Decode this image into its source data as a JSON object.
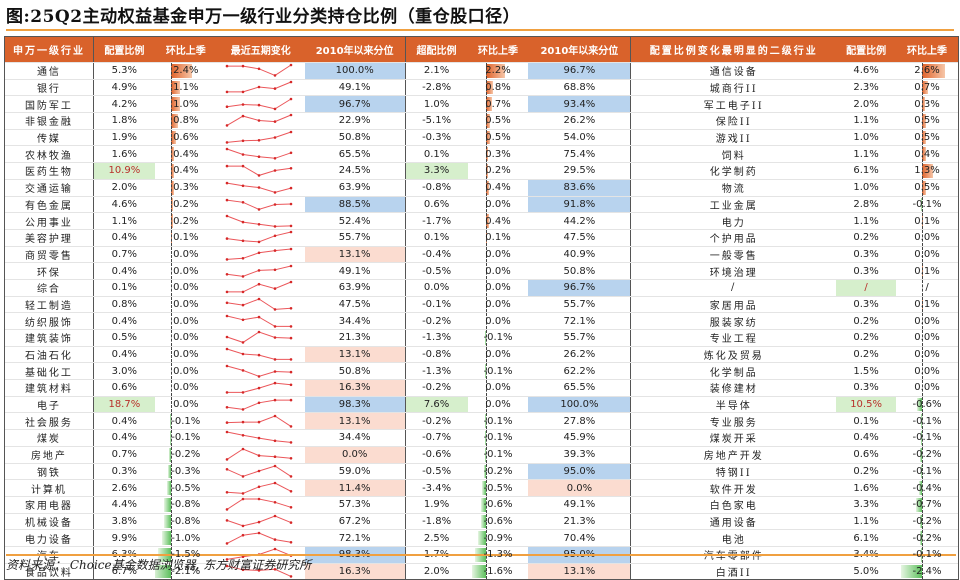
{
  "title": "图:25Q2主动权益基金申万一级行业分类持仓比例（重仓股口径）",
  "source": "资料来源： Choice基金数据浏览器, 东方财富证券研究所",
  "colors": {
    "header_bg": "#d9622b",
    "blue_highlight": "#b8d3ee",
    "pink_highlight": "#fbdcd0",
    "green_highlight": "#d6efcc",
    "bar_positive": "#e0622a",
    "bar_negative": "#5cbf5c",
    "sparkline": "#e8383d",
    "rule": "#f0a040"
  },
  "headers": [
    "申万一级行业",
    "配置比例",
    "环比上季",
    "最近五期变化",
    "2010年以来分位",
    "超配比例",
    "环比上季",
    "2010年以来分位",
    "配置比例变化最明显的二级行业",
    "配置比例",
    "环比上季"
  ],
  "rows": [
    {
      "industry": "通信",
      "weight": "5.3%",
      "qoq": "2.4%",
      "qoq_v": 2.4,
      "spark": [
        0.1,
        0.1,
        0.35,
        0.95,
        0.0
      ],
      "pct": "100.0%",
      "pct_hl": "blue",
      "over": "2.1%",
      "over_qoq": "2.2%",
      "over_qoq_v": 2.2,
      "over_pct": "96.7%",
      "over_pct_hl": "blue",
      "sub": "通信设备",
      "sub_w": "4.6%",
      "sub_qoq": "2.6%",
      "sub_qoq_v": 2.6
    },
    {
      "industry": "银行",
      "weight": "4.9%",
      "qoq": "1.1%",
      "qoq_v": 1.1,
      "spark": [
        0.9,
        0.9,
        0.45,
        0.6,
        0.0
      ],
      "pct": "49.1%",
      "over": "-2.8%",
      "over_qoq": "0.8%",
      "over_qoq_v": 0.8,
      "over_pct": "68.8%",
      "sub": "城商行II",
      "sub_w": "2.3%",
      "sub_qoq": "0.7%",
      "sub_qoq_v": 0.7
    },
    {
      "industry": "国防军工",
      "weight": "4.2%",
      "qoq": "1.0%",
      "qoq_v": 1.0,
      "spark": [
        0.7,
        0.5,
        0.55,
        0.9,
        0.0
      ],
      "pct": "96.7%",
      "pct_hl": "blue",
      "over": "1.0%",
      "over_qoq": "0.7%",
      "over_qoq_v": 0.7,
      "over_pct": "93.4%",
      "over_pct_hl": "blue",
      "sub": "军工电子II",
      "sub_w": "2.0%",
      "sub_qoq": "0.3%",
      "sub_qoq_v": 0.3
    },
    {
      "industry": "非银金融",
      "weight": "1.8%",
      "qoq": "0.8%",
      "qoq_v": 0.8,
      "spark": [
        0.95,
        0.1,
        0.5,
        0.6,
        0.0
      ],
      "pct": "22.9%",
      "over": "-5.1%",
      "over_qoq": "0.5%",
      "over_qoq_v": 0.5,
      "over_pct": "26.2%",
      "sub": "保险II",
      "sub_w": "1.1%",
      "sub_qoq": "0.5%",
      "sub_qoq_v": 0.5
    },
    {
      "industry": "传媒",
      "weight": "1.9%",
      "qoq": "0.6%",
      "qoq_v": 0.6,
      "spark": [
        0.95,
        0.8,
        0.75,
        0.5,
        0.0
      ],
      "pct": "50.8%",
      "over": "-0.3%",
      "over_qoq": "0.5%",
      "over_qoq_v": 0.5,
      "over_pct": "54.0%",
      "sub": "游戏II",
      "sub_w": "1.0%",
      "sub_qoq": "0.5%",
      "sub_qoq_v": 0.5
    },
    {
      "industry": "农林牧渔",
      "weight": "1.6%",
      "qoq": "0.4%",
      "qoq_v": 0.4,
      "spark": [
        0.0,
        0.5,
        0.7,
        0.85,
        0.35
      ],
      "pct": "65.5%",
      "over": "0.1%",
      "over_qoq": "0.3%",
      "over_qoq_v": 0.3,
      "over_pct": "75.4%",
      "sub": "饲料",
      "sub_w": "1.1%",
      "sub_qoq": "0.4%",
      "sub_qoq_v": 0.4
    },
    {
      "industry": "医药生物",
      "weight": "10.9%",
      "weight_hl": "green",
      "qoq": "0.4%",
      "qoq_v": 0.4,
      "spark": [
        0.1,
        0.1,
        0.95,
        0.5,
        0.3
      ],
      "pct": "24.5%",
      "over": "3.3%",
      "over_hl": "green",
      "over_qoq": "0.2%",
      "over_qoq_v": 0.2,
      "over_pct": "29.5%",
      "sub": "化学制药",
      "sub_w": "6.1%",
      "sub_qoq": "1.3%",
      "sub_qoq_v": 1.3
    },
    {
      "industry": "交通运输",
      "weight": "2.0%",
      "qoq": "0.3%",
      "qoq_v": 0.3,
      "spark": [
        0.1,
        0.35,
        0.5,
        0.95,
        0.55
      ],
      "pct": "63.9%",
      "over": "-0.8%",
      "over_qoq": "0.4%",
      "over_qoq_v": 0.4,
      "over_pct": "83.6%",
      "over_pct_hl": "blue",
      "sub": "物流",
      "sub_w": "1.0%",
      "sub_qoq": "0.5%",
      "sub_qoq_v": 0.5
    },
    {
      "industry": "有色金属",
      "weight": "4.6%",
      "qoq": "0.2%",
      "qoq_v": 0.2,
      "spark": [
        0.1,
        0.3,
        0.95,
        0.5,
        0.45
      ],
      "pct": "88.5%",
      "pct_hl": "blue",
      "over": "0.6%",
      "over_qoq": "0.0%",
      "over_qoq_v": 0.0,
      "over_pct": "91.8%",
      "over_pct_hl": "blue",
      "sub": "工业金属",
      "sub_w": "2.8%",
      "sub_qoq": "-0.1%",
      "sub_qoq_v": -0.1
    },
    {
      "industry": "公用事业",
      "weight": "1.1%",
      "qoq": "0.2%",
      "qoq_v": 0.2,
      "spark": [
        0.0,
        0.55,
        0.75,
        0.95,
        0.9
      ],
      "pct": "52.4%",
      "over": "-1.7%",
      "over_qoq": "0.4%",
      "over_qoq_v": 0.4,
      "over_pct": "44.2%",
      "sub": "电力",
      "sub_w": "1.1%",
      "sub_qoq": "0.1%",
      "sub_qoq_v": 0.1
    },
    {
      "industry": "美容护理",
      "weight": "0.4%",
      "qoq": "0.1%",
      "qoq_v": 0.1,
      "spark": [
        0.6,
        0.8,
        0.9,
        0.35,
        0.0
      ],
      "pct": "55.7%",
      "over": "0.1%",
      "over_qoq": "0.1%",
      "over_qoq_v": 0.1,
      "over_pct": "47.5%",
      "sub": "个护用品",
      "sub_w": "0.2%",
      "sub_qoq": "0.0%",
      "sub_qoq_v": 0.0
    },
    {
      "industry": "商贸零售",
      "weight": "0.7%",
      "qoq": "0.0%",
      "qoq_v": 0.0,
      "spark": [
        0.95,
        0.85,
        0.35,
        0.15,
        0.0
      ],
      "pct": "13.1%",
      "pct_hl": "pink",
      "over": "-0.4%",
      "over_qoq": "0.0%",
      "over_qoq_v": 0.0,
      "over_pct": "40.9%",
      "sub": "一般零售",
      "sub_w": "0.3%",
      "sub_qoq": "0.0%",
      "sub_qoq_v": 0.0
    },
    {
      "industry": "环保",
      "weight": "0.4%",
      "qoq": "0.0%",
      "qoq_v": 0.0,
      "spark": [
        0.75,
        0.95,
        0.4,
        0.35,
        0.0
      ],
      "pct": "49.1%",
      "over": "-0.5%",
      "over_qoq": "0.0%",
      "over_qoq_v": 0.0,
      "over_pct": "50.8%",
      "sub": "环境治理",
      "sub_w": "0.3%",
      "sub_qoq": "0.1%",
      "sub_qoq_v": 0.1
    },
    {
      "industry": "综合",
      "weight": "0.1%",
      "qoq": "0.0%",
      "qoq_v": 0.0,
      "spark": [
        0.9,
        0.9,
        0.2,
        0.6,
        0.0
      ],
      "pct": "63.9%",
      "over": "0.0%",
      "over_qoq": "0.0%",
      "over_qoq_v": 0.0,
      "over_pct": "96.7%",
      "over_pct_hl": "blue",
      "sub": "/",
      "sub_w": "/",
      "sub_w_hl": "green",
      "sub_qoq": "/",
      "sub_qoq_v": 0.0
    },
    {
      "industry": "轻工制造",
      "weight": "0.8%",
      "qoq": "0.0%",
      "qoq_v": 0.0,
      "spark": [
        0.35,
        0.55,
        0.0,
        0.95,
        0.85
      ],
      "pct": "47.5%",
      "over": "-0.1%",
      "over_qoq": "0.0%",
      "over_qoq_v": 0.0,
      "over_pct": "55.7%",
      "sub": "家居用品",
      "sub_w": "0.3%",
      "sub_qoq": "0.1%",
      "sub_qoq_v": 0.1
    },
    {
      "industry": "纺织服饰",
      "weight": "0.4%",
      "qoq": "0.0%",
      "qoq_v": 0.0,
      "spark": [
        0.0,
        0.35,
        0.1,
        0.95,
        0.95
      ],
      "pct": "34.4%",
      "over": "-0.2%",
      "over_qoq": "0.0%",
      "over_qoq_v": 0.0,
      "over_pct": "72.1%",
      "sub": "服装家纺",
      "sub_w": "0.2%",
      "sub_qoq": "0.0%",
      "sub_qoq_v": 0.0
    },
    {
      "industry": "建筑装饰",
      "weight": "0.5%",
      "qoq": "0.0%",
      "qoq_v": 0.0,
      "spark": [
        0.45,
        0.95,
        0.0,
        0.5,
        0.55
      ],
      "pct": "21.3%",
      "over": "-1.3%",
      "over_qoq": "-0.1%",
      "over_qoq_v": -0.1,
      "over_pct": "55.7%",
      "sub": "专业工程",
      "sub_w": "0.2%",
      "sub_qoq": "0.0%",
      "sub_qoq_v": 0.0
    },
    {
      "industry": "石油石化",
      "weight": "0.4%",
      "qoq": "0.0%",
      "qoq_v": 0.0,
      "spark": [
        0.0,
        0.45,
        0.55,
        0.95,
        0.95
      ],
      "pct": "13.1%",
      "pct_hl": "pink",
      "over": "-0.8%",
      "over_qoq": "0.0%",
      "over_qoq_v": 0.0,
      "over_pct": "26.2%",
      "sub": "炼化及贸易",
      "sub_w": "0.2%",
      "sub_qoq": "0.0%",
      "sub_qoq_v": 0.0
    },
    {
      "industry": "基础化工",
      "weight": "3.0%",
      "qoq": "0.0%",
      "qoq_v": 0.0,
      "spark": [
        0.0,
        0.4,
        0.95,
        0.5,
        0.55
      ],
      "pct": "50.8%",
      "over": "-1.3%",
      "over_qoq": "-0.1%",
      "over_qoq_v": -0.1,
      "over_pct": "62.2%",
      "sub": "化学制品",
      "sub_w": "1.5%",
      "sub_qoq": "0.0%",
      "sub_qoq_v": 0.0
    },
    {
      "industry": "建筑材料",
      "weight": "0.6%",
      "qoq": "0.0%",
      "qoq_v": 0.0,
      "spark": [
        0.95,
        0.95,
        0.55,
        0.1,
        0.25
      ],
      "pct": "16.3%",
      "pct_hl": "pink",
      "over": "-0.2%",
      "over_qoq": "0.0%",
      "over_qoq_v": 0.0,
      "over_pct": "65.5%",
      "sub": "装修建材",
      "sub_w": "0.3%",
      "sub_qoq": "0.0%",
      "sub_qoq_v": 0.0
    },
    {
      "industry": "电子",
      "weight": "18.7%",
      "weight_hl": "green",
      "qoq": "0.0%",
      "qoq_v": 0.0,
      "spark": [
        0.75,
        0.95,
        0.35,
        0.1,
        0.1
      ],
      "pct": "98.3%",
      "pct_hl": "blue",
      "over": "7.6%",
      "over_hl": "green",
      "over_qoq": "0.0%",
      "over_qoq_v": 0.0,
      "over_pct": "100.0%",
      "over_pct_hl": "blue",
      "sub": "半导体",
      "sub_w": "10.5%",
      "sub_w_hl": "green",
      "sub_qoq": "-0.6%",
      "sub_qoq_v": -0.6
    },
    {
      "industry": "社会服务",
      "weight": "0.4%",
      "qoq": "-0.1%",
      "qoq_v": -0.1,
      "spark": [
        0.6,
        0.55,
        0.55,
        0.0,
        0.95
      ],
      "pct": "13.1%",
      "pct_hl": "pink",
      "over": "-0.2%",
      "over_qoq": "-0.1%",
      "over_qoq_v": -0.1,
      "over_pct": "27.8%",
      "sub": "专业服务",
      "sub_w": "0.1%",
      "sub_qoq": "-0.1%",
      "sub_qoq_v": -0.1
    },
    {
      "industry": "煤炭",
      "weight": "0.4%",
      "qoq": "-0.1%",
      "qoq_v": -0.1,
      "spark": [
        0.0,
        0.3,
        0.55,
        0.8,
        0.95
      ],
      "pct": "34.4%",
      "over": "-0.7%",
      "over_qoq": "-0.1%",
      "over_qoq_v": -0.1,
      "over_pct": "45.9%",
      "sub": "煤炭开采",
      "sub_w": "0.4%",
      "sub_qoq": "-0.1%",
      "sub_qoq_v": -0.1
    },
    {
      "industry": "房地产",
      "weight": "0.7%",
      "qoq": "-0.2%",
      "qoq_v": -0.2,
      "spark": [
        0.95,
        0.0,
        0.6,
        0.7,
        0.85
      ],
      "pct": "0.0%",
      "pct_hl": "pink",
      "over": "-0.6%",
      "over_qoq": "-0.1%",
      "over_qoq_v": -0.1,
      "over_pct": "39.3%",
      "sub": "房地产开发",
      "sub_w": "0.6%",
      "sub_qoq": "-0.2%",
      "sub_qoq_v": -0.2
    },
    {
      "industry": "钢铁",
      "weight": "0.3%",
      "qoq": "-0.3%",
      "qoq_v": -0.3,
      "spark": [
        0.3,
        0.95,
        0.45,
        0.0,
        0.95
      ],
      "pct": "59.0%",
      "over": "-0.5%",
      "over_qoq": "-0.2%",
      "over_qoq_v": -0.2,
      "over_pct": "95.0%",
      "over_pct_hl": "blue",
      "sub": "特钢II",
      "sub_w": "0.2%",
      "sub_qoq": "-0.1%",
      "sub_qoq_v": -0.1
    },
    {
      "industry": "计算机",
      "weight": "2.6%",
      "qoq": "-0.5%",
      "qoq_v": -0.5,
      "spark": [
        0.85,
        0.95,
        0.35,
        0.0,
        0.75
      ],
      "pct": "11.4%",
      "pct_hl": "pink",
      "over": "-3.4%",
      "over_qoq": "-0.5%",
      "over_qoq_v": -0.5,
      "over_pct": "0.0%",
      "over_pct_hl": "pink",
      "sub": "软件开发",
      "sub_w": "1.6%",
      "sub_qoq": "-0.4%",
      "sub_qoq_v": -0.4
    },
    {
      "industry": "家用电器",
      "weight": "4.4%",
      "qoq": "-0.8%",
      "qoq_v": -0.8,
      "spark": [
        0.95,
        0.0,
        0.0,
        0.3,
        0.75
      ],
      "pct": "57.3%",
      "over": "1.9%",
      "over_qoq": "-0.6%",
      "over_qoq_v": -0.6,
      "over_pct": "49.1%",
      "sub": "白色家电",
      "sub_w": "3.3%",
      "sub_qoq": "-0.7%",
      "sub_qoq_v": -0.7
    },
    {
      "industry": "机械设备",
      "weight": "3.8%",
      "qoq": "-0.8%",
      "qoq_v": -0.8,
      "spark": [
        0.4,
        0.9,
        0.55,
        0.0,
        0.6
      ],
      "pct": "67.2%",
      "over": "-1.8%",
      "over_qoq": "-0.6%",
      "over_qoq_v": -0.6,
      "over_pct": "21.3%",
      "sub": "通用设备",
      "sub_w": "1.1%",
      "sub_qoq": "-0.2%",
      "sub_qoq_v": -0.2
    },
    {
      "industry": "电力设备",
      "weight": "9.9%",
      "qoq": "-1.0%",
      "qoq_v": -1.0,
      "spark": [
        0.95,
        0.2,
        0.0,
        0.6,
        0.85
      ],
      "pct": "72.1%",
      "over": "2.5%",
      "over_qoq": "-0.9%",
      "over_qoq_v": -0.9,
      "over_pct": "70.4%",
      "sub": "电池",
      "sub_w": "6.1%",
      "sub_qoq": "-0.2%",
      "sub_qoq_v": -0.2
    },
    {
      "industry": "汽车",
      "weight": "6.3%",
      "qoq": "-1.5%",
      "qoq_v": -1.5,
      "spark": [
        0.95,
        0.7,
        0.5,
        0.0,
        0.6
      ],
      "pct": "98.3%",
      "pct_hl": "blue",
      "over": "1.7%",
      "over_qoq": "-1.3%",
      "over_qoq_v": -1.3,
      "over_pct": "95.0%",
      "over_pct_hl": "blue",
      "sub": "汽车零部件",
      "sub_w": "3.4%",
      "sub_qoq": "-0.1%",
      "sub_qoq_v": -0.1
    },
    {
      "industry": "食品饮料",
      "weight": "6.7%",
      "qoq": "-2.1%",
      "qoq_v": -2.1,
      "spark": [
        0.0,
        0.35,
        0.4,
        0.3,
        0.95
      ],
      "pct": "16.3%",
      "pct_hl": "pink",
      "over": "2.0%",
      "over_qoq": "-1.6%",
      "over_qoq_v": -1.6,
      "over_pct": "13.1%",
      "over_pct_hl": "pink",
      "sub": "白酒II",
      "sub_w": "5.0%",
      "sub_qoq": "-2.4%",
      "sub_qoq_v": -2.4
    }
  ]
}
